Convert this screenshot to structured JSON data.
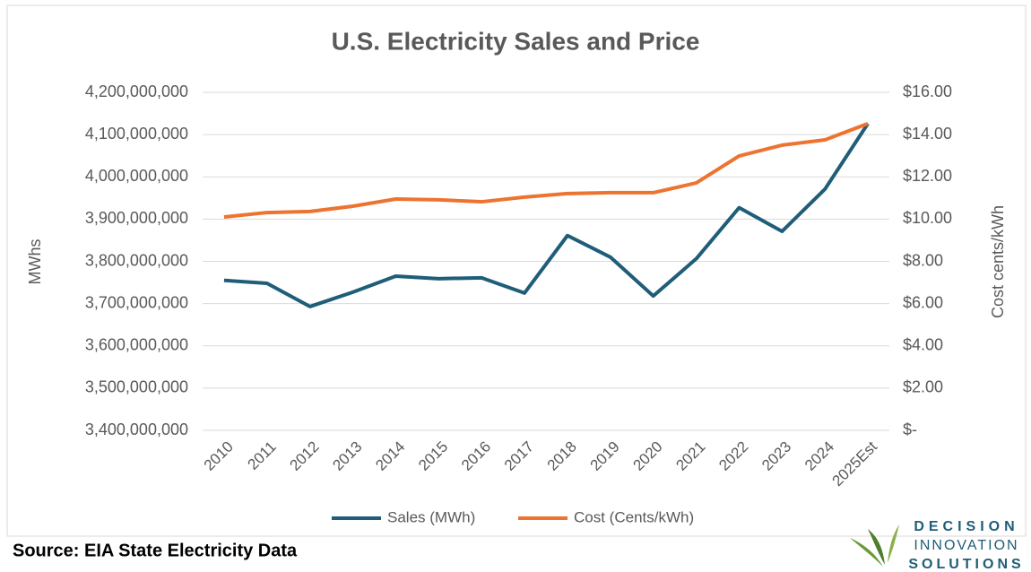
{
  "chart_data": {
    "type": "line",
    "title": "U.S. Electricity Sales and Price",
    "ylabel": "MWhs",
    "y2label": "Cost cents/kWh",
    "categories": [
      "2010",
      "2011",
      "2012",
      "2013",
      "2014",
      "2015",
      "2016",
      "2017",
      "2018",
      "2019",
      "2020",
      "2021",
      "2022",
      "2023",
      "2024",
      "2025Est"
    ],
    "series": [
      {
        "name": "Sales (MWh)",
        "color": "#1f5d78",
        "axis": "y",
        "values": [
          3755000000,
          3748000000,
          3693000000,
          3727000000,
          3765000000,
          3759000000,
          3761000000,
          3725000000,
          3861000000,
          3810000000,
          3718000000,
          3806000000,
          3927000000,
          3871000000,
          3971000000,
          4126000000
        ]
      },
      {
        "name": "Cost (Cents/kWh)",
        "color": "#ed7330",
        "axis": "y2",
        "values": [
          10.1,
          10.31,
          10.36,
          10.61,
          10.95,
          10.91,
          10.82,
          11.04,
          11.21,
          11.25,
          11.25,
          11.71,
          12.99,
          13.5,
          13.75,
          14.52
        ]
      }
    ],
    "ylim": [
      3400000000,
      4200000000
    ],
    "yticks": [
      {
        "value": 3400000000,
        "label": "3,400,000,000"
      },
      {
        "value": 3500000000,
        "label": "3,500,000,000"
      },
      {
        "value": 3600000000,
        "label": "3,600,000,000"
      },
      {
        "value": 3700000000,
        "label": "3,700,000,000"
      },
      {
        "value": 3800000000,
        "label": "3,800,000,000"
      },
      {
        "value": 3900000000,
        "label": "3,900,000,000"
      },
      {
        "value": 4000000000,
        "label": "4,000,000,000"
      },
      {
        "value": 4100000000,
        "label": "4,100,000,000"
      },
      {
        "value": 4200000000,
        "label": "4,200,000,000"
      }
    ],
    "y2lim": [
      0,
      16
    ],
    "y2ticks": [
      {
        "value": 0,
        "label": "$-"
      },
      {
        "value": 2,
        "label": "$2.00"
      },
      {
        "value": 4,
        "label": "$4.00"
      },
      {
        "value": 6,
        "label": "$6.00"
      },
      {
        "value": 8,
        "label": "$8.00"
      },
      {
        "value": 10,
        "label": "$10.00"
      },
      {
        "value": 12,
        "label": "$12.00"
      },
      {
        "value": 14,
        "label": "$14.00"
      },
      {
        "value": 16,
        "label": "$16.00"
      }
    ],
    "grid": true,
    "legend": "bottom"
  },
  "source": "Source: EIA State Electricity Data",
  "logo": [
    "DECISION",
    "INNOVATION",
    "SOLUTIONS"
  ]
}
